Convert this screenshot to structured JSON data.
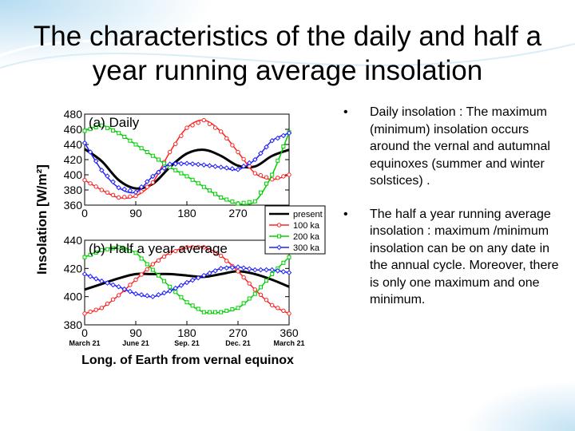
{
  "slide": {
    "title": "The characteristics of the daily and half a year running average insolation",
    "bullets": [
      {
        "text": "Daily insolation : The maximum (minimum) insolation occurs around the vernal and autumnal equinoxes (summer and winter solstices) ."
      },
      {
        "text": "The half a year running average insolation : maximum /minimum insolation can be on any date in the annual cycle. Moreover, there is only one maximum and one minimum."
      }
    ],
    "bullet_glyph": "•"
  },
  "colors": {
    "present": "#000000",
    "ka100": "#ff2020",
    "ka200": "#00d000",
    "ka300": "#2020ff"
  },
  "chart_data": [
    {
      "type": "line",
      "title": "(a) Daily",
      "xlabel": "Long. of Earth from vernal equinox",
      "ylabel": "Insolation [W/m²]",
      "xlim": [
        0,
        360
      ],
      "ylim": [
        360,
        480
      ],
      "xticks": [
        0,
        90,
        180,
        270,
        360
      ],
      "yticks": [
        360,
        380,
        400,
        420,
        440,
        460,
        480
      ],
      "x": [
        0,
        30,
        60,
        90,
        120,
        150,
        180,
        210,
        240,
        270,
        300,
        330,
        360
      ],
      "series": [
        {
          "name": "present",
          "values": [
            434,
            418,
            393,
            382,
            388,
            410,
            428,
            433,
            425,
            412,
            411,
            425,
            433
          ]
        },
        {
          "name": "100 ka",
          "values": [
            393,
            380,
            370,
            372,
            390,
            430,
            462,
            472,
            457,
            430,
            402,
            394,
            400
          ]
        },
        {
          "name": "200 ka",
          "values": [
            458,
            465,
            455,
            440,
            425,
            410,
            398,
            384,
            370,
            362,
            365,
            400,
            456
          ]
        },
        {
          "name": "300 ka",
          "values": [
            442,
            406,
            383,
            377,
            398,
            414,
            415,
            413,
            410,
            407,
            420,
            445,
            455
          ]
        }
      ]
    },
    {
      "type": "line",
      "title": "(b) Half a year average",
      "xlim": [
        0,
        360
      ],
      "ylim": [
        380,
        440
      ],
      "xticks": [
        0,
        90,
        180,
        270,
        360
      ],
      "xtick_dates": [
        "March 21",
        "June 21",
        "Sep. 21",
        "Dec. 21",
        "March 21"
      ],
      "yticks": [
        380,
        400,
        420,
        440
      ],
      "x": [
        0,
        30,
        60,
        90,
        120,
        150,
        180,
        210,
        240,
        270,
        300,
        330,
        360
      ],
      "series": [
        {
          "name": "present",
          "values": [
            405,
            409,
            413,
            416,
            416,
            416,
            415,
            414,
            416,
            418,
            416,
            412,
            407
          ]
        },
        {
          "name": "100 ka",
          "values": [
            388,
            392,
            401,
            412,
            423,
            431,
            435,
            435,
            429,
            418,
            405,
            394,
            388
          ]
        },
        {
          "name": "200 ka",
          "values": [
            428,
            433,
            435,
            431,
            419,
            407,
            396,
            389,
            389,
            392,
            402,
            416,
            428
          ]
        },
        {
          "name": "300 ka",
          "values": [
            416,
            411,
            407,
            402,
            400,
            404,
            410,
            415,
            420,
            421,
            419,
            419,
            417
          ]
        }
      ]
    }
  ],
  "legend": {
    "entries": [
      "present",
      "100 ka",
      "200 ka",
      "300 ka"
    ],
    "placement": "right-between-panels"
  }
}
